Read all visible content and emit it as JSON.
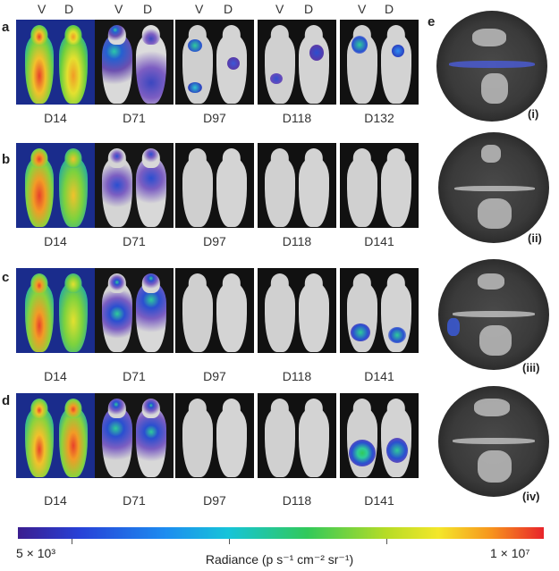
{
  "rows": [
    {
      "letter": "a",
      "days": [
        "D14",
        "D71",
        "D97",
        "D118",
        "D132"
      ]
    },
    {
      "letter": "b",
      "days": [
        "D14",
        "D71",
        "D97",
        "D118",
        "D141"
      ]
    },
    {
      "letter": "c",
      "days": [
        "D14",
        "D71",
        "D97",
        "D118",
        "D141"
      ]
    },
    {
      "letter": "d",
      "days": [
        "D14",
        "D71",
        "D97",
        "D118",
        "D141"
      ]
    }
  ],
  "view_labels": {
    "ventral": "V",
    "dorsal": "D"
  },
  "panel_e": {
    "letter": "e",
    "dishes": [
      "(i)",
      "(ii)",
      "(iii)",
      "(iv)"
    ]
  },
  "colorbar": {
    "min_label": "5 × 10³",
    "max_label": "1 × 10⁷",
    "label": "Radiance (p s⁻¹ cm⁻² sr⁻¹)"
  }
}
